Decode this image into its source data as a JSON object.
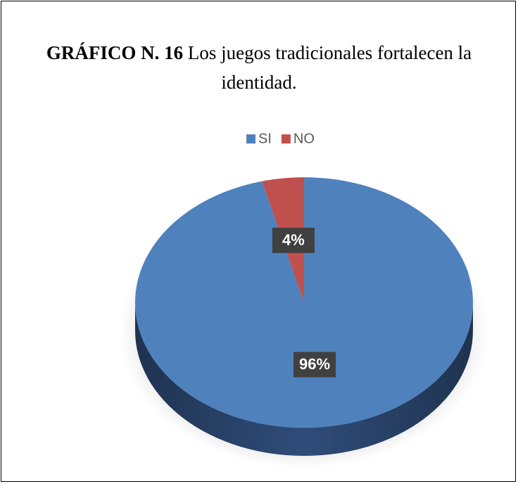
{
  "chart_data": {
    "type": "pie",
    "title_label": "GRÁFICO N. 16",
    "title": "Los juegos tradicionales fortalecen la identidad.",
    "categories": [
      "SI",
      "NO"
    ],
    "values": [
      96,
      4
    ],
    "value_labels": [
      "96%",
      "4%"
    ],
    "colors": [
      "#4f81bd",
      "#c0504d"
    ],
    "legend": "top"
  }
}
